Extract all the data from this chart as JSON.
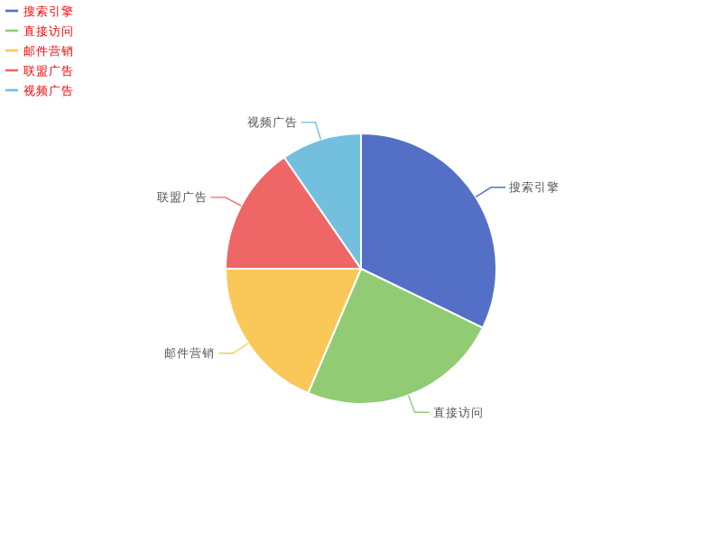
{
  "chart_data": {
    "type": "pie",
    "categories": [
      "搜索引擎",
      "直接访问",
      "邮件营销",
      "联盟广告",
      "视频广告"
    ],
    "values": [
      32.2,
      24.2,
      18.6,
      15.4,
      9.6
    ],
    "colors": [
      "#5470c6",
      "#91cc75",
      "#fac858",
      "#ee6666",
      "#73c0de"
    ],
    "legend": "top left"
  }
}
